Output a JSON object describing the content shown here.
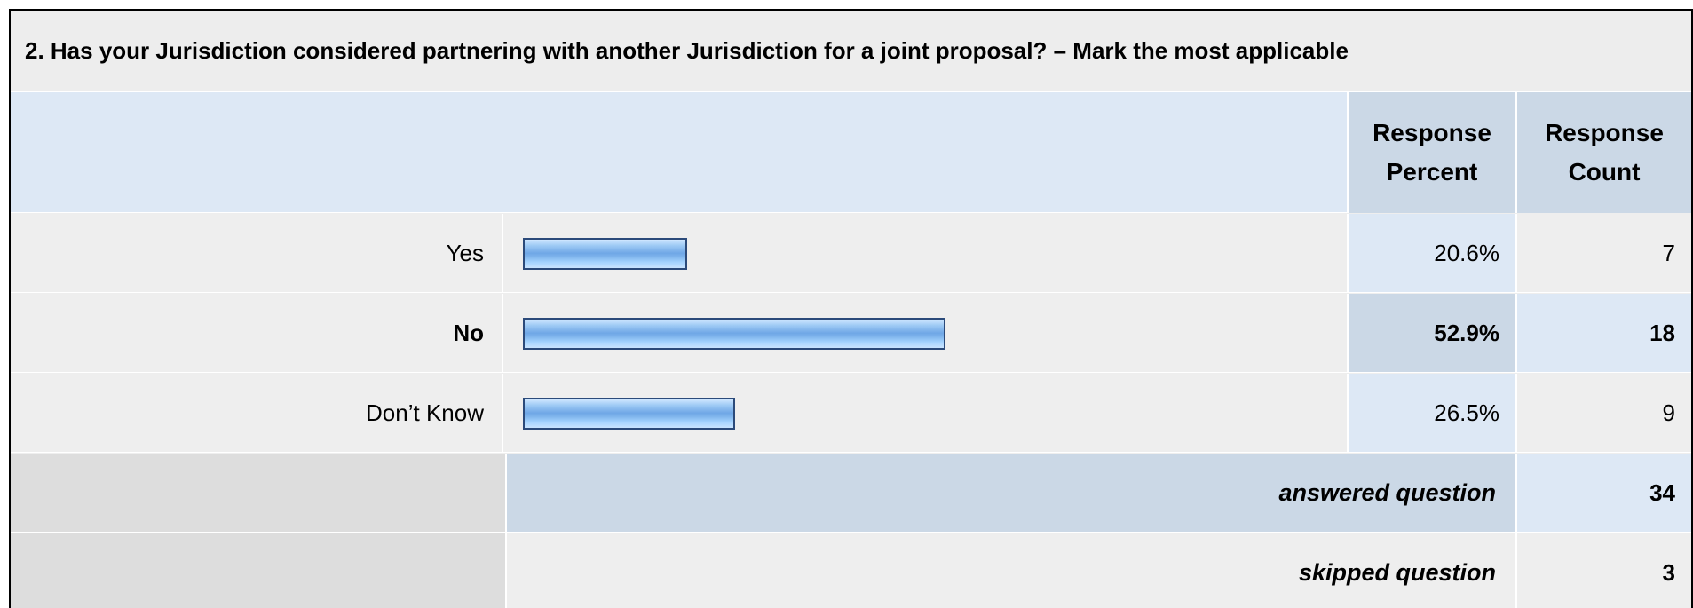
{
  "chart_data": {
    "type": "bar",
    "title": "2. Has your Jurisdiction considered partnering with another Jurisdiction for a joint proposal? – Mark the most applicable",
    "columns": [
      "Response Percent",
      "Response Count"
    ],
    "categories": [
      "Yes",
      "No",
      "Don’t Know"
    ],
    "series": [
      {
        "name": "Response Percent",
        "values": [
          20.6,
          52.9,
          26.5
        ]
      },
      {
        "name": "Response Count",
        "values": [
          7,
          18,
          9
        ]
      }
    ],
    "xlim": [
      0,
      100
    ],
    "highlighted_category": "No"
  },
  "rows": [
    {
      "label": "Yes",
      "percent": "20.6%",
      "count": "7",
      "bold": false
    },
    {
      "label": "No",
      "percent": "52.9%",
      "count": "18",
      "bold": true
    },
    {
      "label": "Don’t Know",
      "percent": "26.5%",
      "count": "9",
      "bold": false
    }
  ],
  "header": {
    "percent_line1": "Response",
    "percent_line2": "Percent",
    "count_line1": "Response",
    "count_line2": "Count"
  },
  "summary": {
    "answered_label": "answered question",
    "answered_value": "34",
    "skipped_label": "skipped question",
    "skipped_value": "3"
  },
  "colors": {
    "bar_border": "#2b4a7a",
    "bar_fill": "#8fc0f0",
    "header_bg": "#dde8f5",
    "header_cell_bg": "#cbd8e6",
    "row_bg": "#eeeeee",
    "summary_bg": "#dddddd"
  }
}
